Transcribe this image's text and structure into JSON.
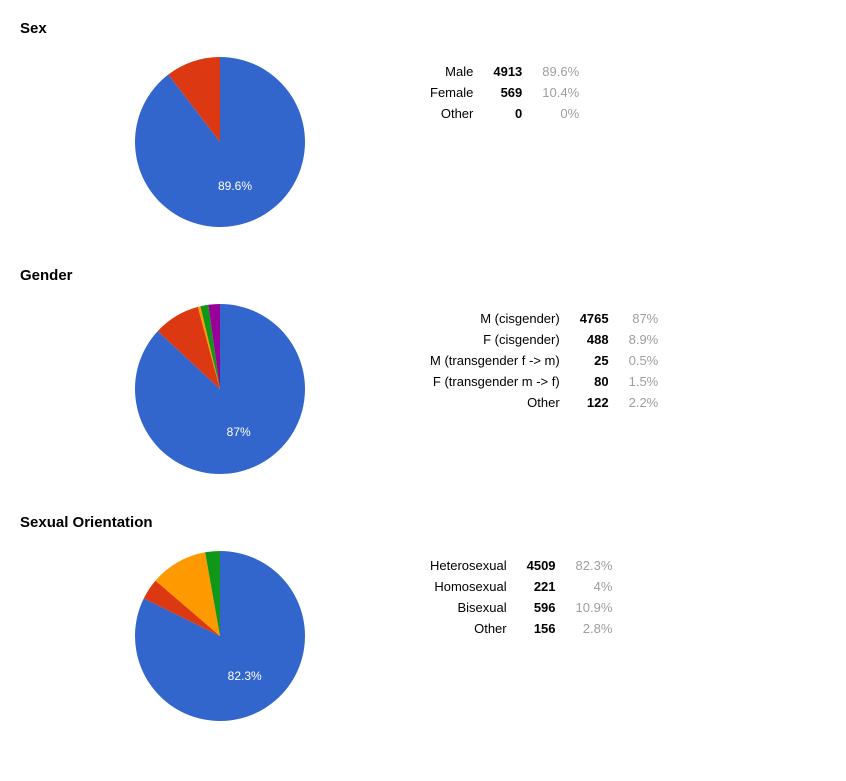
{
  "sections": [
    {
      "title": "Sex",
      "chart": {
        "type": "pie",
        "diameter": 170,
        "background_color": "#ffffff",
        "label_color": "#ffffff",
        "label_fontsize": 12,
        "dominant_label": "89.6%",
        "slices": [
          {
            "label": "Male",
            "count": 4913,
            "percent": "89.6%",
            "value": 89.6,
            "color": "#3366cc"
          },
          {
            "label": "Female",
            "count": 569,
            "percent": "10.4%",
            "value": 10.4,
            "color": "#dc3912"
          },
          {
            "label": "Other",
            "count": 0,
            "percent": "0%",
            "value": 0,
            "color": "#ff9900"
          }
        ]
      }
    },
    {
      "title": "Gender",
      "chart": {
        "type": "pie",
        "diameter": 170,
        "background_color": "#ffffff",
        "label_color": "#ffffff",
        "label_fontsize": 12,
        "dominant_label": "87%",
        "slices": [
          {
            "label": "M (cisgender)",
            "count": 4765,
            "percent": "87%",
            "value": 87.0,
            "color": "#3366cc"
          },
          {
            "label": "F (cisgender)",
            "count": 488,
            "percent": "8.9%",
            "value": 8.9,
            "color": "#dc3912"
          },
          {
            "label": "M (transgender f -> m)",
            "count": 25,
            "percent": "0.5%",
            "value": 0.5,
            "color": "#ff9900"
          },
          {
            "label": "F (transgender m -> f)",
            "count": 80,
            "percent": "1.5%",
            "value": 1.5,
            "color": "#109618"
          },
          {
            "label": "Other",
            "count": 122,
            "percent": "2.2%",
            "value": 2.2,
            "color": "#990099"
          }
        ]
      }
    },
    {
      "title": "Sexual Orientation",
      "chart": {
        "type": "pie",
        "diameter": 170,
        "background_color": "#ffffff",
        "label_color": "#ffffff",
        "label_fontsize": 12,
        "dominant_label": "82.3%",
        "slices": [
          {
            "label": "Heterosexual",
            "count": 4509,
            "percent": "82.3%",
            "value": 82.3,
            "color": "#3366cc"
          },
          {
            "label": "Homosexual",
            "count": 221,
            "percent": "4%",
            "value": 4.0,
            "color": "#dc3912"
          },
          {
            "label": "Bisexual",
            "count": 596,
            "percent": "10.9%",
            "value": 10.9,
            "color": "#ff9900"
          },
          {
            "label": "Other",
            "count": 156,
            "percent": "2.8%",
            "value": 2.8,
            "color": "#109618"
          }
        ]
      }
    }
  ]
}
